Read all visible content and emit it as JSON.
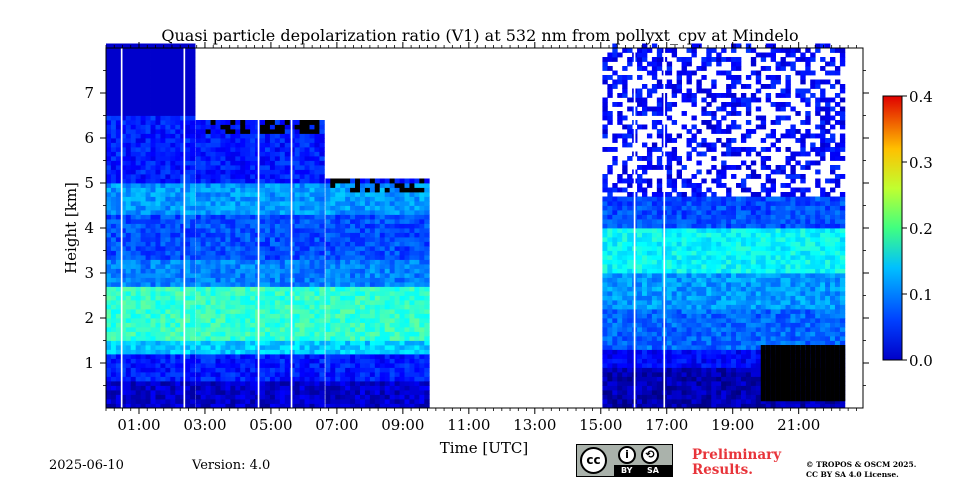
{
  "header": {
    "title": "Quasi particle depolarization ratio (V1) at 532 nm from pollyxt_cpv at Mindelo"
  },
  "footer": {
    "date": "2025-06-10",
    "version": "Version: 4.0",
    "preliminary_line1": "Preliminary",
    "preliminary_line2": "Results.",
    "copyright_line1": "© TROPOS & OSCM 2025.",
    "copyright_line2": "CC BY SA 4.0 License.",
    "license_badge": {
      "cc": "cc",
      "by": "BY",
      "sa": "SA"
    }
  },
  "chart_data": {
    "type": "heatmap",
    "title": "Quasi particle depolarization ratio (V1) at 532 nm from pollyxt_cpv at Mindelo",
    "xlabel": "Time [UTC]",
    "ylabel": "Height [km]",
    "xlim": [
      0,
      22.95
    ],
    "ylim": [
      0,
      8.0
    ],
    "x_ticks": [
      1,
      3,
      5,
      7,
      9,
      11,
      13,
      15,
      17,
      19,
      21
    ],
    "x_tick_labels": [
      "01:00",
      "03:00",
      "05:00",
      "07:00",
      "09:00",
      "11:00",
      "13:00",
      "15:00",
      "17:00",
      "19:00",
      "21:00"
    ],
    "y_ticks": [
      1,
      2,
      3,
      4,
      5,
      6,
      7
    ],
    "y_tick_labels": [
      "1",
      "2",
      "3",
      "4",
      "5",
      "6",
      "7"
    ],
    "colorbar": {
      "range": [
        0.0,
        0.4
      ],
      "ticks": [
        0.0,
        0.1,
        0.2,
        0.3,
        0.4
      ],
      "tick_labels": [
        "0.0",
        "0.1",
        "0.2",
        "0.3",
        "0.4"
      ],
      "colormap": "jet"
    },
    "colors": {
      "cloud_or_missing": "#000000",
      "no_data": "#ffffff"
    },
    "measurement_periods_utc": [
      {
        "start": 0.0,
        "end": 2.57
      },
      {
        "start": 2.72,
        "end": 6.5
      },
      {
        "start": 6.65,
        "end": 9.8
      },
      {
        "start": 15.05,
        "end": 22.35
      }
    ],
    "layers": [
      {
        "period": 0,
        "top_km": 2.8,
        "bottom_km": 1.2,
        "value": 0.16,
        "note_free": true
      },
      {
        "period": 1,
        "top_km": 2.5,
        "bottom_km": 1.2,
        "value": 0.18
      },
      {
        "period": 2,
        "top_km": 2.3,
        "bottom_km": 1.2,
        "value": 0.19
      },
      {
        "period": 3,
        "top_km": 4.0,
        "bottom_km": 3.0,
        "value": 0.15
      }
    ],
    "cloud_top_km": [
      {
        "start": 2.72,
        "end": 6.5,
        "height": 6.3
      },
      {
        "start": 6.65,
        "end": 9.8,
        "height": 5.0
      }
    ]
  }
}
